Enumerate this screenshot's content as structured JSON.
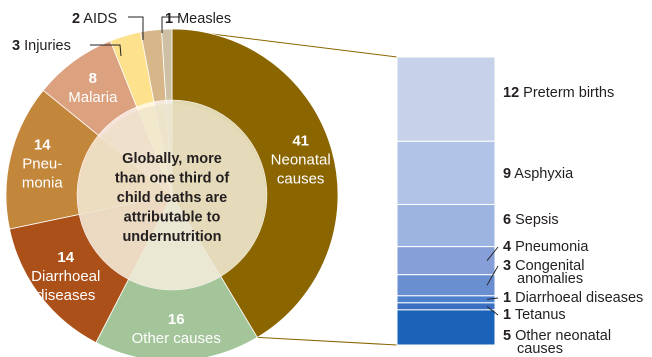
{
  "chart_data": {
    "type": "pie",
    "title": "",
    "center_text": [
      "Globally, more",
      "than one third of",
      "child deaths are",
      "attributable to",
      "undernutrition"
    ],
    "slices": [
      {
        "value": 41,
        "label": "Neonatal causes",
        "label_lines": [
          "Neonatal",
          "causes"
        ],
        "color": "#8a6500",
        "label_color": "#ffffff",
        "label_style": "inside",
        "inner_color": "#e2d9b3"
      },
      {
        "value": 16,
        "label": "Other causes",
        "label_lines": [
          "Other causes"
        ],
        "color": "#a4c59a",
        "label_color": "#ffffff",
        "label_style": "inside",
        "inner_color": "#edf3ea"
      },
      {
        "value": 14,
        "label": "Diarrhoeal diseases",
        "label_lines": [
          "Diarrhoeal",
          "diseases"
        ],
        "color": "#ab5018",
        "label_color": "#ffffff",
        "label_style": "inside",
        "inner_color": "#efd6c6"
      },
      {
        "value": 14,
        "label": "Pneumonia",
        "label_lines": [
          "Pneu-",
          "monia"
        ],
        "color": "#c3873c",
        "label_color": "#ffffff",
        "label_style": "inside",
        "inner_color": "#f1dcc1"
      },
      {
        "value": 8,
        "label": "Malaria",
        "label_lines": [
          "Malaria"
        ],
        "color": "#dca17f",
        "label_color": "#ffffff",
        "label_style": "inside",
        "inner_color": "#f6e4da"
      },
      {
        "value": 3,
        "label": "Injuries",
        "label_lines": [
          "Injuries"
        ],
        "color": "#fde18d",
        "label_color": "#231f20",
        "label_style": "callout",
        "inner_color": "#fff6dc"
      },
      {
        "value": 2,
        "label": "AIDS",
        "label_lines": [
          "AIDS"
        ],
        "color": "#d7b68a",
        "label_color": "#231f20",
        "label_style": "callout",
        "inner_color": "#f5ead9"
      },
      {
        "value": 1,
        "label": "Measles",
        "label_lines": [
          "Measles"
        ],
        "color": "#cec0a4",
        "label_color": "#231f20",
        "label_style": "callout",
        "inner_color": "#f1ece2"
      }
    ],
    "breakdown": {
      "of": "Neonatal causes",
      "segments": [
        {
          "value": 12,
          "label": "Preterm births",
          "label_lines": [
            "Preterm births"
          ],
          "color": "#c6d2ea"
        },
        {
          "value": 9,
          "label": "Asphyxia",
          "label_lines": [
            "Asphyxia"
          ],
          "color": "#b1c3e6"
        },
        {
          "value": 6,
          "label": "Sepsis",
          "label_lines": [
            "Sepsis"
          ],
          "color": "#9db4e0"
        },
        {
          "value": 4,
          "label": "Pneumonia",
          "label_lines": [
            "Pneumonia"
          ],
          "color": "#869fd8"
        },
        {
          "value": 3,
          "label": "Congenital anomalies",
          "label_lines": [
            "Congenital",
            "anomalies"
          ],
          "color": "#6a8fd0"
        },
        {
          "value": 1,
          "label": "Diarrhoeal diseases",
          "label_lines": [
            "Diarrhoeal diseases"
          ],
          "color": "#4c7fcc"
        },
        {
          "value": 1,
          "label": "Tetanus",
          "label_lines": [
            "Tetanus"
          ],
          "color": "#3a6fc2"
        },
        {
          "value": 5,
          "label": "Other neonatal causes",
          "label_lines": [
            "Other neonatal",
            "causes"
          ],
          "color": "#1a63b8"
        }
      ]
    },
    "colors": {
      "text": "#231f20",
      "connector": "#8a6500",
      "leader": "#231f20",
      "center_circle": "#e8dcc0",
      "center_text": "#231f20"
    }
  }
}
